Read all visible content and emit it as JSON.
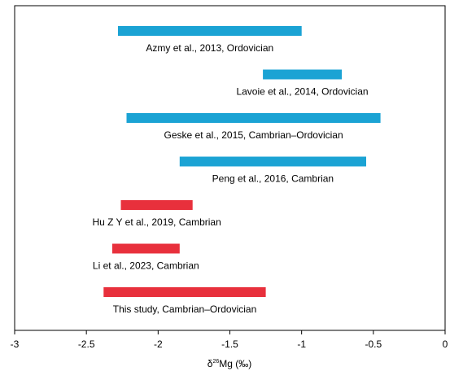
{
  "chart_data": {
    "type": "bar",
    "orientation": "horizontal-range",
    "title": "",
    "xlabel_parts": {
      "symbol": "δ",
      "superscript": "26",
      "rest": "Mg (‰)"
    },
    "ylabel": "",
    "xlim": [
      -3,
      0
    ],
    "xticks": [
      -3,
      -2.5,
      -2,
      -1.5,
      -1,
      -0.5,
      0
    ],
    "xtick_labels": [
      "-3",
      "-2.5",
      "-2",
      "-1.5",
      "-1",
      "-0.5",
      "0"
    ],
    "grid": false,
    "legend": "none",
    "colors": {
      "literature": "#1ba3d4",
      "this_study": "#e8303c"
    },
    "ranges": [
      {
        "label": "Azmy et al., 2013, Ordovician",
        "min": -2.28,
        "max": -1.0,
        "group": "literature"
      },
      {
        "label": "Lavoie et al., 2014, Ordovician",
        "min": -1.27,
        "max": -0.72,
        "group": "literature"
      },
      {
        "label": "Geske et al., 2015, Cambrian–Ordovician",
        "min": -2.22,
        "max": -0.45,
        "group": "literature"
      },
      {
        "label": "Peng et al., 2016, Cambrian",
        "min": -1.85,
        "max": -0.55,
        "group": "literature"
      },
      {
        "label": "Hu Z Y et al., 2019, Cambrian",
        "min": -2.26,
        "max": -1.76,
        "group": "this_study"
      },
      {
        "label": "Li et al., 2023, Cambrian",
        "min": -2.32,
        "max": -1.85,
        "group": "this_study"
      },
      {
        "label": "This study, Cambrian–Ordovician",
        "min": -2.38,
        "max": -1.25,
        "group": "this_study"
      }
    ]
  }
}
